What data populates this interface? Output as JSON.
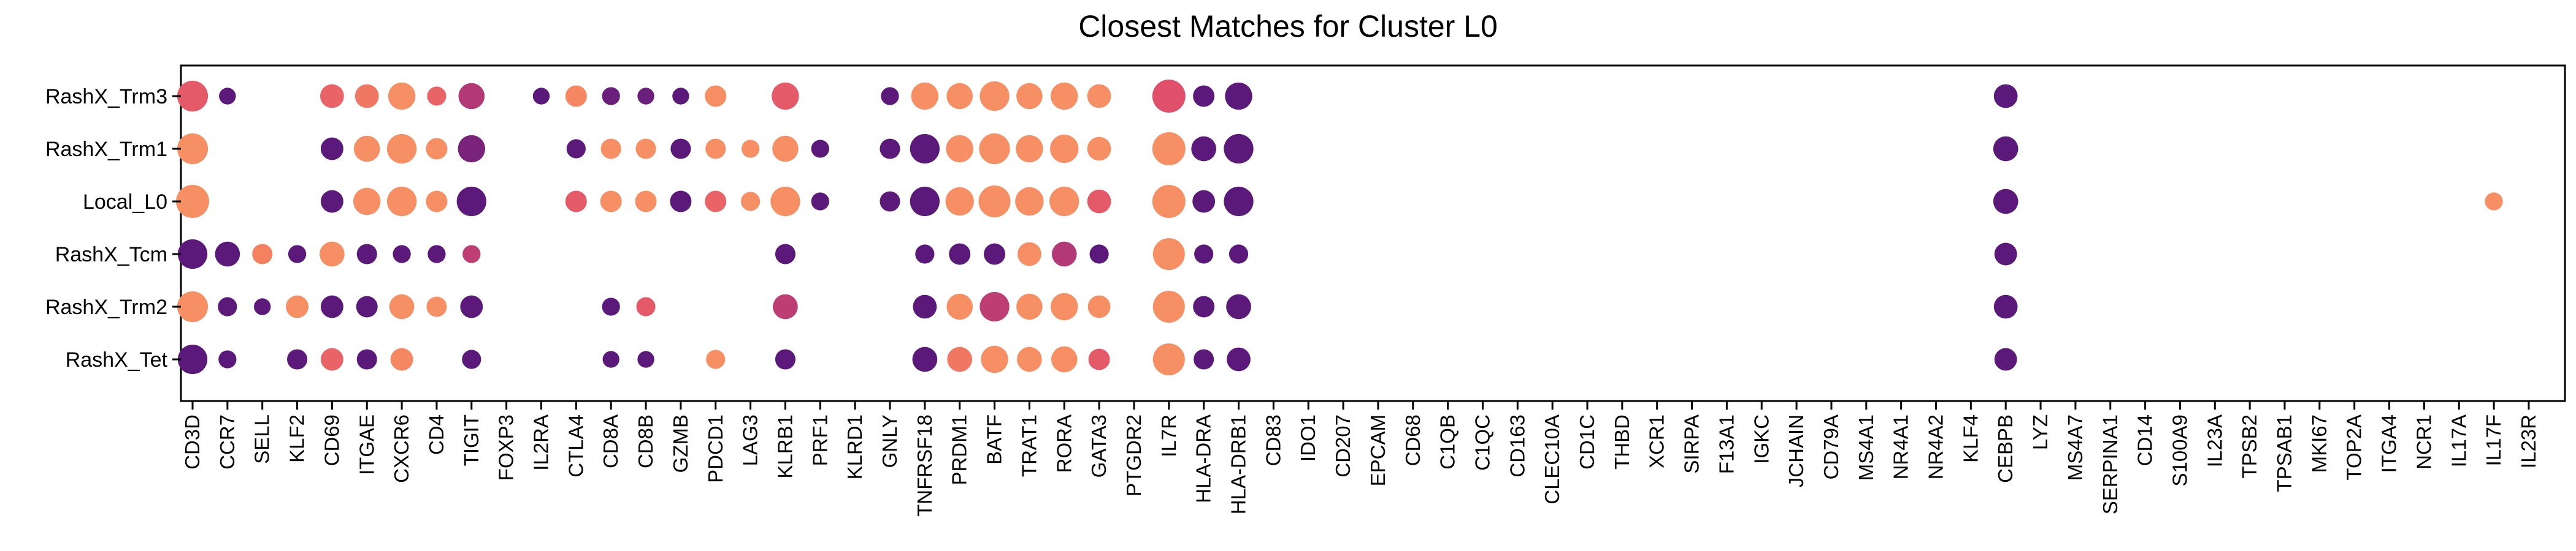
{
  "chart_data": {
    "type": "dotplot",
    "title": "Closest Matches for Cluster L0",
    "genes": [
      "CD3D",
      "CCR7",
      "SELL",
      "KLF2",
      "CD69",
      "ITGAE",
      "CXCR6",
      "CD4",
      "TIGIT",
      "FOXP3",
      "IL2RA",
      "CTLA4",
      "CD8A",
      "CD8B",
      "GZMB",
      "PDCD1",
      "LAG3",
      "KLRB1",
      "PRF1",
      "KLRD1",
      "GNLY",
      "TNFRSF18",
      "PRDM1",
      "BATF",
      "TRAT1",
      "RORA",
      "GATA3",
      "PTGDR2",
      "IL7R",
      "HLA-DRA",
      "HLA-DRB1",
      "CD83",
      "IDO1",
      "CD207",
      "EPCAM",
      "CD68",
      "C1QB",
      "C1QC",
      "CD163",
      "CLEC10A",
      "CD1C",
      "THBD",
      "XCR1",
      "SIRPA",
      "F13A1",
      "IGKC",
      "JCHAIN",
      "CD79A",
      "MS4A1",
      "NR4A1",
      "NR4A2",
      "KLF4",
      "CEBPB",
      "LYZ",
      "MS4A7",
      "SERPINA1",
      "CD14",
      "S100A9",
      "IL23A",
      "TPSB2",
      "TPSAB1",
      "MKI67",
      "TOP2A",
      "ITGA4",
      "NCR1",
      "IL17A",
      "IL17F",
      "IL23R"
    ],
    "groups": [
      "RashX_Trm3",
      "RashX_Trm1",
      "Local_L0",
      "RashX_Tcm",
      "RashX_Trm2",
      "RashX_Tet"
    ],
    "size_scale": "fraction expressing (0-1)",
    "color_scale": "mean expression (0-1)",
    "colormap": [
      "#5b1a7a",
      "#a63279",
      "#e0506a",
      "#f4815f",
      "#f9a56c"
    ],
    "points": [
      {
        "group": "RashX_Trm3",
        "gene": "CD3D",
        "size": 0.9,
        "color": 0.55
      },
      {
        "group": "RashX_Trm3",
        "gene": "CCR7",
        "size": 0.3,
        "color": 0.0
      },
      {
        "group": "RashX_Trm3",
        "gene": "CD69",
        "size": 0.6,
        "color": 0.6
      },
      {
        "group": "RashX_Trm3",
        "gene": "ITGAE",
        "size": 0.6,
        "color": 0.7
      },
      {
        "group": "RashX_Trm3",
        "gene": "CXCR6",
        "size": 0.75,
        "color": 0.85
      },
      {
        "group": "RashX_Trm3",
        "gene": "CD4",
        "size": 0.4,
        "color": 0.6
      },
      {
        "group": "RashX_Trm3",
        "gene": "TIGIT",
        "size": 0.7,
        "color": 0.3
      },
      {
        "group": "RashX_Trm3",
        "gene": "IL2RA",
        "size": 0.3,
        "color": 0.0
      },
      {
        "group": "RashX_Trm3",
        "gene": "CTLA4",
        "size": 0.5,
        "color": 0.8
      },
      {
        "group": "RashX_Trm3",
        "gene": "CD8A",
        "size": 0.35,
        "color": 0.05
      },
      {
        "group": "RashX_Trm3",
        "gene": "CD8B",
        "size": 0.3,
        "color": 0.05
      },
      {
        "group": "RashX_Trm3",
        "gene": "GZMB",
        "size": 0.3,
        "color": 0.0
      },
      {
        "group": "RashX_Trm3",
        "gene": "PDCD1",
        "size": 0.5,
        "color": 0.85
      },
      {
        "group": "RashX_Trm3",
        "gene": "KLRB1",
        "size": 0.75,
        "color": 0.55
      },
      {
        "group": "RashX_Trm3",
        "gene": "GNLY",
        "size": 0.35,
        "color": 0.0
      },
      {
        "group": "RashX_Trm3",
        "gene": "TNFRSF18",
        "size": 0.75,
        "color": 0.85
      },
      {
        "group": "RashX_Trm3",
        "gene": "PRDM1",
        "size": 0.7,
        "color": 0.85
      },
      {
        "group": "RashX_Trm3",
        "gene": "BATF",
        "size": 0.85,
        "color": 0.85
      },
      {
        "group": "RashX_Trm3",
        "gene": "TRAT1",
        "size": 0.7,
        "color": 0.85
      },
      {
        "group": "RashX_Trm3",
        "gene": "RORA",
        "size": 0.75,
        "color": 0.85
      },
      {
        "group": "RashX_Trm3",
        "gene": "GATA3",
        "size": 0.6,
        "color": 0.85
      },
      {
        "group": "RashX_Trm3",
        "gene": "IL7R",
        "size": 1.0,
        "color": 0.5
      },
      {
        "group": "RashX_Trm3",
        "gene": "HLA-DRA",
        "size": 0.5,
        "color": 0.0
      },
      {
        "group": "RashX_Trm3",
        "gene": "HLA-DRB1",
        "size": 0.75,
        "color": 0.0
      },
      {
        "group": "RashX_Trm3",
        "gene": "CEBPB",
        "size": 0.6,
        "color": 0.0
      },
      {
        "group": "RashX_Trm1",
        "gene": "CD3D",
        "size": 0.9,
        "color": 0.85
      },
      {
        "group": "RashX_Trm1",
        "gene": "CD69",
        "size": 0.55,
        "color": 0.0
      },
      {
        "group": "RashX_Trm1",
        "gene": "ITGAE",
        "size": 0.7,
        "color": 0.85
      },
      {
        "group": "RashX_Trm1",
        "gene": "CXCR6",
        "size": 0.85,
        "color": 0.85
      },
      {
        "group": "RashX_Trm1",
        "gene": "CD4",
        "size": 0.5,
        "color": 0.85
      },
      {
        "group": "RashX_Trm1",
        "gene": "TIGIT",
        "size": 0.75,
        "color": 0.1
      },
      {
        "group": "RashX_Trm1",
        "gene": "CTLA4",
        "size": 0.4,
        "color": 0.0
      },
      {
        "group": "RashX_Trm1",
        "gene": "CD8A",
        "size": 0.45,
        "color": 0.85
      },
      {
        "group": "RashX_Trm1",
        "gene": "CD8B",
        "size": 0.45,
        "color": 0.85
      },
      {
        "group": "RashX_Trm1",
        "gene": "GZMB",
        "size": 0.45,
        "color": 0.0
      },
      {
        "group": "RashX_Trm1",
        "gene": "PDCD1",
        "size": 0.45,
        "color": 0.85
      },
      {
        "group": "RashX_Trm1",
        "gene": "LAG3",
        "size": 0.35,
        "color": 0.85
      },
      {
        "group": "RashX_Trm1",
        "gene": "KLRB1",
        "size": 0.7,
        "color": 0.85
      },
      {
        "group": "RashX_Trm1",
        "gene": "PRF1",
        "size": 0.35,
        "color": 0.0
      },
      {
        "group": "RashX_Trm1",
        "gene": "GNLY",
        "size": 0.45,
        "color": 0.0
      },
      {
        "group": "RashX_Trm1",
        "gene": "TNFRSF18",
        "size": 0.85,
        "color": 0.0
      },
      {
        "group": "RashX_Trm1",
        "gene": "PRDM1",
        "size": 0.75,
        "color": 0.85
      },
      {
        "group": "RashX_Trm1",
        "gene": "BATF",
        "size": 0.9,
        "color": 0.85
      },
      {
        "group": "RashX_Trm1",
        "gene": "TRAT1",
        "size": 0.75,
        "color": 0.85
      },
      {
        "group": "RashX_Trm1",
        "gene": "RORA",
        "size": 0.8,
        "color": 0.85
      },
      {
        "group": "RashX_Trm1",
        "gene": "GATA3",
        "size": 0.6,
        "color": 0.85
      },
      {
        "group": "RashX_Trm1",
        "gene": "IL7R",
        "size": 1.0,
        "color": 0.85
      },
      {
        "group": "RashX_Trm1",
        "gene": "HLA-DRA",
        "size": 0.65,
        "color": 0.0
      },
      {
        "group": "RashX_Trm1",
        "gene": "HLA-DRB1",
        "size": 0.85,
        "color": 0.0
      },
      {
        "group": "RashX_Trm1",
        "gene": "CEBPB",
        "size": 0.65,
        "color": 0.0
      },
      {
        "group": "Local_L0",
        "gene": "CD3D",
        "size": 1.0,
        "color": 0.85
      },
      {
        "group": "Local_L0",
        "gene": "CD69",
        "size": 0.55,
        "color": 0.0
      },
      {
        "group": "Local_L0",
        "gene": "ITGAE",
        "size": 0.75,
        "color": 0.85
      },
      {
        "group": "Local_L0",
        "gene": "CXCR6",
        "size": 0.85,
        "color": 0.85
      },
      {
        "group": "Local_L0",
        "gene": "CD4",
        "size": 0.5,
        "color": 0.85
      },
      {
        "group": "Local_L0",
        "gene": "TIGIT",
        "size": 0.85,
        "color": 0.0
      },
      {
        "group": "Local_L0",
        "gene": "CTLA4",
        "size": 0.5,
        "color": 0.55
      },
      {
        "group": "Local_L0",
        "gene": "CD8A",
        "size": 0.5,
        "color": 0.85
      },
      {
        "group": "Local_L0",
        "gene": "CD8B",
        "size": 0.5,
        "color": 0.85
      },
      {
        "group": "Local_L0",
        "gene": "GZMB",
        "size": 0.5,
        "color": 0.0
      },
      {
        "group": "Local_L0",
        "gene": "PDCD1",
        "size": 0.5,
        "color": 0.6
      },
      {
        "group": "Local_L0",
        "gene": "LAG3",
        "size": 0.4,
        "color": 0.85
      },
      {
        "group": "Local_L0",
        "gene": "KLRB1",
        "size": 0.85,
        "color": 0.85
      },
      {
        "group": "Local_L0",
        "gene": "PRF1",
        "size": 0.35,
        "color": 0.0
      },
      {
        "group": "Local_L0",
        "gene": "GNLY",
        "size": 0.45,
        "color": 0.0
      },
      {
        "group": "Local_L0",
        "gene": "TNFRSF18",
        "size": 0.85,
        "color": 0.0
      },
      {
        "group": "Local_L0",
        "gene": "PRDM1",
        "size": 0.8,
        "color": 0.85
      },
      {
        "group": "Local_L0",
        "gene": "BATF",
        "size": 0.95,
        "color": 0.85
      },
      {
        "group": "Local_L0",
        "gene": "TRAT1",
        "size": 0.8,
        "color": 0.85
      },
      {
        "group": "Local_L0",
        "gene": "RORA",
        "size": 0.85,
        "color": 0.85
      },
      {
        "group": "Local_L0",
        "gene": "GATA3",
        "size": 0.6,
        "color": 0.55
      },
      {
        "group": "Local_L0",
        "gene": "IL7R",
        "size": 1.0,
        "color": 0.85
      },
      {
        "group": "Local_L0",
        "gene": "HLA-DRA",
        "size": 0.55,
        "color": 0.0
      },
      {
        "group": "Local_L0",
        "gene": "HLA-DRB1",
        "size": 0.85,
        "color": 0.0
      },
      {
        "group": "Local_L0",
        "gene": "CEBPB",
        "size": 0.65,
        "color": 0.0
      },
      {
        "group": "Local_L0",
        "gene": "IL17F",
        "size": 0.35,
        "color": 0.85
      },
      {
        "group": "RashX_Tcm",
        "gene": "CD3D",
        "size": 0.85,
        "color": 0.0
      },
      {
        "group": "RashX_Tcm",
        "gene": "CCR7",
        "size": 0.65,
        "color": 0.0
      },
      {
        "group": "RashX_Tcm",
        "gene": "SELL",
        "size": 0.45,
        "color": 0.75
      },
      {
        "group": "RashX_Tcm",
        "gene": "KLF2",
        "size": 0.35,
        "color": 0.0
      },
      {
        "group": "RashX_Tcm",
        "gene": "CD69",
        "size": 0.65,
        "color": 0.85
      },
      {
        "group": "RashX_Tcm",
        "gene": "ITGAE",
        "size": 0.45,
        "color": 0.0
      },
      {
        "group": "RashX_Tcm",
        "gene": "CXCR6",
        "size": 0.35,
        "color": 0.0
      },
      {
        "group": "RashX_Tcm",
        "gene": "CD4",
        "size": 0.35,
        "color": 0.0
      },
      {
        "group": "RashX_Tcm",
        "gene": "TIGIT",
        "size": 0.35,
        "color": 0.35
      },
      {
        "group": "RashX_Tcm",
        "gene": "KLRB1",
        "size": 0.45,
        "color": 0.0
      },
      {
        "group": "RashX_Tcm",
        "gene": "TNFRSF18",
        "size": 0.4,
        "color": 0.0
      },
      {
        "group": "RashX_Tcm",
        "gene": "PRDM1",
        "size": 0.5,
        "color": 0.0
      },
      {
        "group": "RashX_Tcm",
        "gene": "BATF",
        "size": 0.5,
        "color": 0.0
      },
      {
        "group": "RashX_Tcm",
        "gene": "TRAT1",
        "size": 0.6,
        "color": 0.85
      },
      {
        "group": "RashX_Tcm",
        "gene": "RORA",
        "size": 0.65,
        "color": 0.3
      },
      {
        "group": "RashX_Tcm",
        "gene": "GATA3",
        "size": 0.4,
        "color": 0.0
      },
      {
        "group": "RashX_Tcm",
        "gene": "IL7R",
        "size": 0.95,
        "color": 0.85
      },
      {
        "group": "RashX_Tcm",
        "gene": "HLA-DRA",
        "size": 0.4,
        "color": 0.0
      },
      {
        "group": "RashX_Tcm",
        "gene": "HLA-DRB1",
        "size": 0.4,
        "color": 0.0
      },
      {
        "group": "RashX_Tcm",
        "gene": "CEBPB",
        "size": 0.55,
        "color": 0.0
      },
      {
        "group": "RashX_Trm2",
        "gene": "CD3D",
        "size": 0.9,
        "color": 0.85
      },
      {
        "group": "RashX_Trm2",
        "gene": "CCR7",
        "size": 0.4,
        "color": 0.0
      },
      {
        "group": "RashX_Trm2",
        "gene": "SELL",
        "size": 0.3,
        "color": 0.0
      },
      {
        "group": "RashX_Trm2",
        "gene": "KLF2",
        "size": 0.55,
        "color": 0.85
      },
      {
        "group": "RashX_Trm2",
        "gene": "CD69",
        "size": 0.55,
        "color": 0.0
      },
      {
        "group": "RashX_Trm2",
        "gene": "ITGAE",
        "size": 0.5,
        "color": 0.0
      },
      {
        "group": "RashX_Trm2",
        "gene": "CXCR6",
        "size": 0.65,
        "color": 0.85
      },
      {
        "group": "RashX_Trm2",
        "gene": "CD4",
        "size": 0.45,
        "color": 0.85
      },
      {
        "group": "RashX_Trm2",
        "gene": "TIGIT",
        "size": 0.55,
        "color": 0.0
      },
      {
        "group": "RashX_Trm2",
        "gene": "CD8A",
        "size": 0.35,
        "color": 0.0
      },
      {
        "group": "RashX_Trm2",
        "gene": "CD8B",
        "size": 0.4,
        "color": 0.55
      },
      {
        "group": "RashX_Trm2",
        "gene": "KLRB1",
        "size": 0.65,
        "color": 0.35
      },
      {
        "group": "RashX_Trm2",
        "gene": "TNFRSF18",
        "size": 0.6,
        "color": 0.0
      },
      {
        "group": "RashX_Trm2",
        "gene": "PRDM1",
        "size": 0.7,
        "color": 0.85
      },
      {
        "group": "RashX_Trm2",
        "gene": "BATF",
        "size": 0.85,
        "color": 0.35
      },
      {
        "group": "RashX_Trm2",
        "gene": "TRAT1",
        "size": 0.7,
        "color": 0.85
      },
      {
        "group": "RashX_Trm2",
        "gene": "RORA",
        "size": 0.75,
        "color": 0.85
      },
      {
        "group": "RashX_Trm2",
        "gene": "GATA3",
        "size": 0.55,
        "color": 0.85
      },
      {
        "group": "RashX_Trm2",
        "gene": "IL7R",
        "size": 0.95,
        "color": 0.85
      },
      {
        "group": "RashX_Trm2",
        "gene": "HLA-DRA",
        "size": 0.5,
        "color": 0.0
      },
      {
        "group": "RashX_Trm2",
        "gene": "HLA-DRB1",
        "size": 0.65,
        "color": 0.0
      },
      {
        "group": "RashX_Trm2",
        "gene": "CEBPB",
        "size": 0.6,
        "color": 0.0
      },
      {
        "group": "RashX_Tet",
        "gene": "CD3D",
        "size": 0.85,
        "color": 0.0
      },
      {
        "group": "RashX_Tet",
        "gene": "CCR7",
        "size": 0.35,
        "color": 0.0
      },
      {
        "group": "RashX_Tet",
        "gene": "KLF2",
        "size": 0.45,
        "color": 0.0
      },
      {
        "group": "RashX_Tet",
        "gene": "CD69",
        "size": 0.55,
        "color": 0.6
      },
      {
        "group": "RashX_Tet",
        "gene": "ITGAE",
        "size": 0.45,
        "color": 0.0
      },
      {
        "group": "RashX_Tet",
        "gene": "CXCR6",
        "size": 0.55,
        "color": 0.8
      },
      {
        "group": "RashX_Tet",
        "gene": "TIGIT",
        "size": 0.4,
        "color": 0.0
      },
      {
        "group": "RashX_Tet",
        "gene": "CD8A",
        "size": 0.3,
        "color": 0.0
      },
      {
        "group": "RashX_Tet",
        "gene": "CD8B",
        "size": 0.3,
        "color": 0.0
      },
      {
        "group": "RashX_Tet",
        "gene": "PDCD1",
        "size": 0.4,
        "color": 0.85
      },
      {
        "group": "RashX_Tet",
        "gene": "KLRB1",
        "size": 0.45,
        "color": 0.0
      },
      {
        "group": "RashX_Tet",
        "gene": "TNFRSF18",
        "size": 0.65,
        "color": 0.0
      },
      {
        "group": "RashX_Tet",
        "gene": "PRDM1",
        "size": 0.65,
        "color": 0.7
      },
      {
        "group": "RashX_Tet",
        "gene": "BATF",
        "size": 0.75,
        "color": 0.85
      },
      {
        "group": "RashX_Tet",
        "gene": "TRAT1",
        "size": 0.65,
        "color": 0.85
      },
      {
        "group": "RashX_Tet",
        "gene": "RORA",
        "size": 0.7,
        "color": 0.85
      },
      {
        "group": "RashX_Tet",
        "gene": "GATA3",
        "size": 0.5,
        "color": 0.55
      },
      {
        "group": "RashX_Tet",
        "gene": "IL7R",
        "size": 0.95,
        "color": 0.85
      },
      {
        "group": "RashX_Tet",
        "gene": "HLA-DRA",
        "size": 0.45,
        "color": 0.0
      },
      {
        "group": "RashX_Tet",
        "gene": "HLA-DRB1",
        "size": 0.6,
        "color": 0.0
      },
      {
        "group": "RashX_Tet",
        "gene": "CEBPB",
        "size": 0.55,
        "color": 0.0
      }
    ]
  }
}
